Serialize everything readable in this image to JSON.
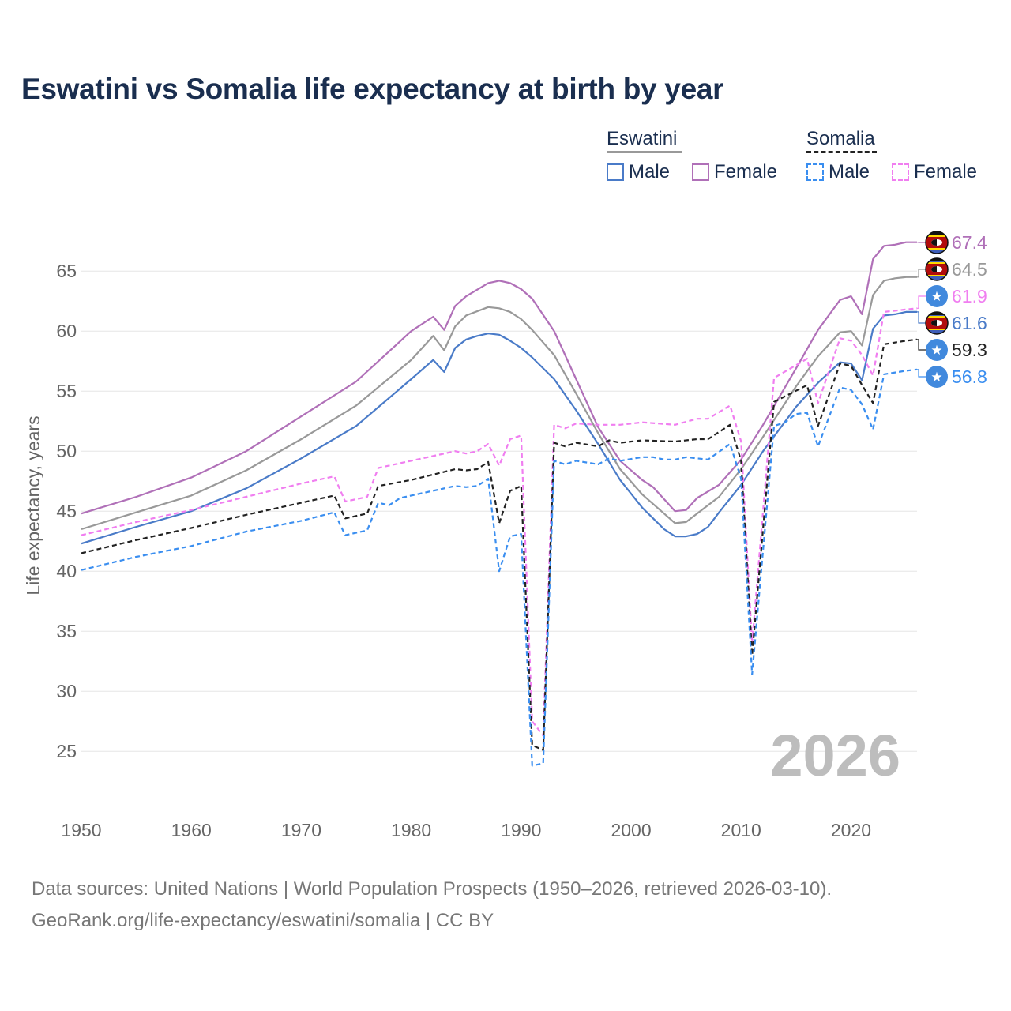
{
  "title": "Eswatini vs Somalia life expectancy at birth by year",
  "legend": {
    "groups": [
      {
        "name": "Eswatini",
        "items": [
          "Male",
          "Female"
        ]
      },
      {
        "name": "Somalia",
        "items": [
          "Male",
          "Female"
        ]
      }
    ]
  },
  "watermark_year": "2026",
  "source": {
    "line1": "Data sources: United Nations | World Population Prospects (1950–2026, retrieved 2026-03-10).",
    "line2": "GeoRank.org/life-expectancy/eswatini/somalia | CC BY"
  },
  "colors": {
    "eswatini_male": "#4a7bc8",
    "eswatini_female": "#b070b8",
    "eswatini_total": "#999999",
    "somalia_male": "#3a8ef0",
    "somalia_female": "#f07ef0",
    "somalia_total": "#222222",
    "title": "#1a2e4f"
  },
  "chart_data": {
    "type": "line",
    "ylabel": "Life expectancy, years",
    "xlabel": "",
    "xlim": [
      1950,
      2026
    ],
    "ylim": [
      21,
      68.5
    ],
    "xticks": [
      1950,
      1960,
      1970,
      1980,
      1990,
      2000,
      2010,
      2020
    ],
    "yticks": [
      25,
      30,
      35,
      40,
      45,
      50,
      55,
      60,
      65
    ],
    "series": [
      {
        "name": "Eswatini Female",
        "key": "eswatini_female",
        "style": "solid",
        "end_label": "67.4",
        "flag": "eswatini",
        "points": [
          [
            1950,
            44.8
          ],
          [
            1955,
            46.2
          ],
          [
            1960,
            47.8
          ],
          [
            1965,
            50.0
          ],
          [
            1970,
            52.9
          ],
          [
            1975,
            55.8
          ],
          [
            1980,
            60.0
          ],
          [
            1982,
            61.2
          ],
          [
            1983,
            60.1
          ],
          [
            1984,
            62.1
          ],
          [
            1985,
            62.9
          ],
          [
            1987,
            64.0
          ],
          [
            1988,
            64.2
          ],
          [
            1989,
            64.0
          ],
          [
            1990,
            63.5
          ],
          [
            1991,
            62.7
          ],
          [
            1993,
            60.0
          ],
          [
            1995,
            56.0
          ],
          [
            1997,
            52.0
          ],
          [
            1999,
            49.2
          ],
          [
            2001,
            47.6
          ],
          [
            2002,
            47.0
          ],
          [
            2004,
            45.0
          ],
          [
            2005,
            45.1
          ],
          [
            2006,
            46.1
          ],
          [
            2008,
            47.2
          ],
          [
            2010,
            49.3
          ],
          [
            2012,
            52.2
          ],
          [
            2015,
            56.9
          ],
          [
            2017,
            60.1
          ],
          [
            2019,
            62.6
          ],
          [
            2020,
            62.9
          ],
          [
            2021,
            61.4
          ],
          [
            2022,
            66.0
          ],
          [
            2023,
            67.1
          ],
          [
            2024,
            67.2
          ],
          [
            2025,
            67.4
          ],
          [
            2026,
            67.4
          ]
        ]
      },
      {
        "name": "Eswatini Total",
        "key": "eswatini_total",
        "style": "solid",
        "end_label": "64.5",
        "flag": "eswatini",
        "points": [
          [
            1950,
            43.5
          ],
          [
            1955,
            44.9
          ],
          [
            1960,
            46.3
          ],
          [
            1965,
            48.4
          ],
          [
            1970,
            51.0
          ],
          [
            1975,
            53.8
          ],
          [
            1980,
            57.6
          ],
          [
            1982,
            59.6
          ],
          [
            1983,
            58.4
          ],
          [
            1984,
            60.4
          ],
          [
            1985,
            61.3
          ],
          [
            1987,
            62.0
          ],
          [
            1988,
            61.9
          ],
          [
            1989,
            61.6
          ],
          [
            1990,
            61.0
          ],
          [
            1991,
            60.1
          ],
          [
            1993,
            58.0
          ],
          [
            1995,
            54.8
          ],
          [
            1997,
            51.5
          ],
          [
            1999,
            48.5
          ],
          [
            2001,
            46.4
          ],
          [
            2002,
            45.6
          ],
          [
            2004,
            44.0
          ],
          [
            2005,
            44.1
          ],
          [
            2006,
            44.8
          ],
          [
            2008,
            46.2
          ],
          [
            2010,
            48.5
          ],
          [
            2012,
            51.2
          ],
          [
            2015,
            55.4
          ],
          [
            2017,
            57.9
          ],
          [
            2019,
            59.9
          ],
          [
            2020,
            60.0
          ],
          [
            2021,
            58.8
          ],
          [
            2022,
            63.0
          ],
          [
            2023,
            64.2
          ],
          [
            2024,
            64.4
          ],
          [
            2025,
            64.5
          ],
          [
            2026,
            64.5
          ]
        ]
      },
      {
        "name": "Eswatini Male",
        "key": "eswatini_male",
        "style": "solid",
        "end_label": "61.6",
        "flag": "eswatini",
        "points": [
          [
            1950,
            42.3
          ],
          [
            1955,
            43.7
          ],
          [
            1960,
            45.0
          ],
          [
            1965,
            46.9
          ],
          [
            1970,
            49.4
          ],
          [
            1975,
            52.1
          ],
          [
            1980,
            56.0
          ],
          [
            1982,
            57.6
          ],
          [
            1983,
            56.6
          ],
          [
            1984,
            58.6
          ],
          [
            1985,
            59.3
          ],
          [
            1986,
            59.6
          ],
          [
            1987,
            59.8
          ],
          [
            1988,
            59.7
          ],
          [
            1989,
            59.2
          ],
          [
            1990,
            58.6
          ],
          [
            1991,
            57.8
          ],
          [
            1993,
            56.0
          ],
          [
            1995,
            53.4
          ],
          [
            1997,
            50.6
          ],
          [
            1999,
            47.6
          ],
          [
            2001,
            45.3
          ],
          [
            2002,
            44.4
          ],
          [
            2003,
            43.5
          ],
          [
            2004,
            42.9
          ],
          [
            2005,
            42.9
          ],
          [
            2006,
            43.1
          ],
          [
            2007,
            43.7
          ],
          [
            2008,
            44.9
          ],
          [
            2010,
            47.2
          ],
          [
            2012,
            50.0
          ],
          [
            2015,
            53.7
          ],
          [
            2017,
            55.7
          ],
          [
            2019,
            57.4
          ],
          [
            2020,
            57.3
          ],
          [
            2021,
            55.9
          ],
          [
            2022,
            60.2
          ],
          [
            2023,
            61.3
          ],
          [
            2024,
            61.4
          ],
          [
            2025,
            61.6
          ],
          [
            2026,
            61.6
          ]
        ]
      },
      {
        "name": "Somalia Female",
        "key": "somalia_female",
        "style": "dashed",
        "end_label": "61.9",
        "flag": "somalia",
        "points": [
          [
            1950,
            43.0
          ],
          [
            1955,
            44.1
          ],
          [
            1960,
            45.1
          ],
          [
            1965,
            46.2
          ],
          [
            1970,
            47.3
          ],
          [
            1973,
            47.9
          ],
          [
            1974,
            45.8
          ],
          [
            1976,
            46.2
          ],
          [
            1977,
            48.6
          ],
          [
            1980,
            49.2
          ],
          [
            1984,
            50.0
          ],
          [
            1985,
            49.8
          ],
          [
            1986,
            50.0
          ],
          [
            1987,
            50.6
          ],
          [
            1988,
            48.8
          ],
          [
            1989,
            51.0
          ],
          [
            1990,
            51.3
          ],
          [
            1991,
            27.5
          ],
          [
            1992,
            26.3
          ],
          [
            1993,
            52.2
          ],
          [
            1994,
            51.9
          ],
          [
            1995,
            52.3
          ],
          [
            1997,
            52.2
          ],
          [
            1999,
            52.2
          ],
          [
            2001,
            52.4
          ],
          [
            2004,
            52.2
          ],
          [
            2006,
            52.7
          ],
          [
            2007,
            52.7
          ],
          [
            2009,
            53.8
          ],
          [
            2010,
            50.8
          ],
          [
            2011,
            34.0
          ],
          [
            2013,
            56.1
          ],
          [
            2016,
            57.7
          ],
          [
            2017,
            54.0
          ],
          [
            2019,
            59.4
          ],
          [
            2020,
            59.2
          ],
          [
            2021,
            58.0
          ],
          [
            2022,
            56.3
          ],
          [
            2023,
            61.6
          ],
          [
            2025,
            61.8
          ],
          [
            2026,
            61.9
          ]
        ]
      },
      {
        "name": "Somalia Total",
        "key": "somalia_total",
        "style": "dashed",
        "end_label": "59.3",
        "flag": "somalia",
        "points": [
          [
            1950,
            41.5
          ],
          [
            1955,
            42.6
          ],
          [
            1960,
            43.6
          ],
          [
            1965,
            44.7
          ],
          [
            1970,
            45.7
          ],
          [
            1973,
            46.3
          ],
          [
            1974,
            44.4
          ],
          [
            1976,
            44.8
          ],
          [
            1977,
            47.1
          ],
          [
            1980,
            47.6
          ],
          [
            1984,
            48.5
          ],
          [
            1985,
            48.4
          ],
          [
            1986,
            48.5
          ],
          [
            1987,
            49.1
          ],
          [
            1988,
            44.0
          ],
          [
            1989,
            46.7
          ],
          [
            1990,
            47.1
          ],
          [
            1991,
            25.5
          ],
          [
            1992,
            25.1
          ],
          [
            1993,
            50.7
          ],
          [
            1994,
            50.4
          ],
          [
            1995,
            50.7
          ],
          [
            1997,
            50.4
          ],
          [
            1998,
            50.9
          ],
          [
            1999,
            50.7
          ],
          [
            2001,
            50.9
          ],
          [
            2004,
            50.8
          ],
          [
            2006,
            51.0
          ],
          [
            2007,
            51.0
          ],
          [
            2009,
            52.2
          ],
          [
            2010,
            49.2
          ],
          [
            2011,
            33.0
          ],
          [
            2013,
            54.1
          ],
          [
            2016,
            55.5
          ],
          [
            2017,
            52.1
          ],
          [
            2019,
            57.3
          ],
          [
            2020,
            57.1
          ],
          [
            2021,
            55.5
          ],
          [
            2022,
            54.0
          ],
          [
            2023,
            58.9
          ],
          [
            2025,
            59.2
          ],
          [
            2026,
            59.3
          ]
        ]
      },
      {
        "name": "Somalia Male",
        "key": "somalia_male",
        "style": "dashed",
        "end_label": "56.8",
        "flag": "somalia",
        "points": [
          [
            1950,
            40.1
          ],
          [
            1955,
            41.2
          ],
          [
            1960,
            42.1
          ],
          [
            1965,
            43.3
          ],
          [
            1970,
            44.2
          ],
          [
            1973,
            44.9
          ],
          [
            1974,
            43.0
          ],
          [
            1976,
            43.4
          ],
          [
            1977,
            45.7
          ],
          [
            1978,
            45.5
          ],
          [
            1979,
            46.1
          ],
          [
            1980,
            46.3
          ],
          [
            1984,
            47.1
          ],
          [
            1985,
            47.0
          ],
          [
            1986,
            47.1
          ],
          [
            1987,
            47.7
          ],
          [
            1988,
            40.0
          ],
          [
            1989,
            42.9
          ],
          [
            1990,
            43.1
          ],
          [
            1991,
            23.8
          ],
          [
            1992,
            24.0
          ],
          [
            1993,
            49.2
          ],
          [
            1994,
            48.9
          ],
          [
            1995,
            49.2
          ],
          [
            1997,
            48.9
          ],
          [
            1998,
            49.4
          ],
          [
            1999,
            49.2
          ],
          [
            2001,
            49.5
          ],
          [
            2002,
            49.5
          ],
          [
            2003,
            49.3
          ],
          [
            2004,
            49.3
          ],
          [
            2005,
            49.5
          ],
          [
            2007,
            49.3
          ],
          [
            2009,
            50.6
          ],
          [
            2010,
            47.7
          ],
          [
            2011,
            31.4
          ],
          [
            2013,
            52.1
          ],
          [
            2014,
            52.4
          ],
          [
            2015,
            53.1
          ],
          [
            2016,
            53.2
          ],
          [
            2017,
            50.4
          ],
          [
            2019,
            55.3
          ],
          [
            2020,
            55.1
          ],
          [
            2021,
            53.9
          ],
          [
            2022,
            51.8
          ],
          [
            2023,
            56.4
          ],
          [
            2025,
            56.7
          ],
          [
            2026,
            56.8
          ]
        ]
      }
    ]
  }
}
